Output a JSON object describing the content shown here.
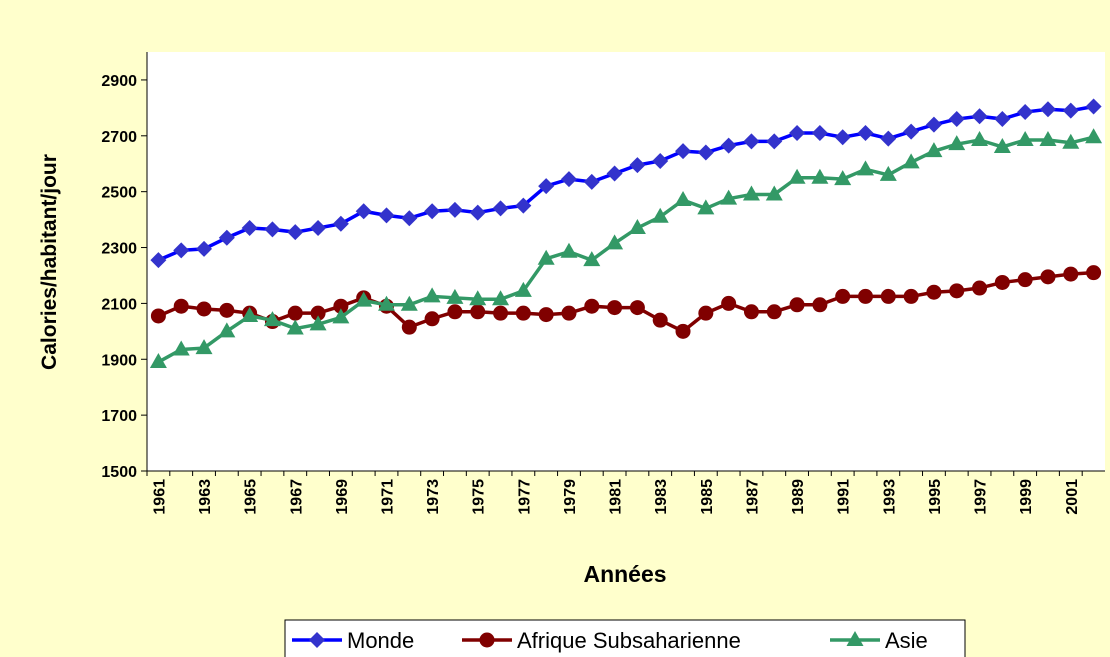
{
  "chart_data": {
    "type": "line",
    "x_label": "Années",
    "y_label": "Calories/habitant/jour",
    "categories": [
      "1961",
      null,
      "1963",
      null,
      "1965",
      null,
      "1967",
      null,
      "1969",
      null,
      "1971",
      null,
      "1973",
      null,
      "1975",
      null,
      "1977",
      null,
      "1979",
      null,
      "1981",
      null,
      "1983",
      null,
      "1985",
      null,
      "1987",
      null,
      "1989",
      null,
      "1991",
      null,
      "1993",
      null,
      "1995",
      null,
      "1997",
      null,
      "1999",
      null,
      "2001",
      null
    ],
    "series": [
      {
        "name": "Monde",
        "color": "#0000ff",
        "marker_color": "#3333cc",
        "marker": "diamond",
        "values": [
          2255,
          2290,
          2295,
          2335,
          2370,
          2365,
          2355,
          2370,
          2385,
          2430,
          2415,
          2405,
          2430,
          2435,
          2425,
          2440,
          2450,
          2520,
          2545,
          2535,
          2565,
          2595,
          2610,
          2645,
          2640,
          2665,
          2680,
          2680,
          2710,
          2710,
          2695,
          2710,
          2690,
          2715,
          2740,
          2760,
          2770,
          2760,
          2785,
          2795,
          2790,
          2805
        ]
      },
      {
        "name": "Afrique Subsaharienne",
        "color": "#800000",
        "marker_color": "#800000",
        "marker": "circle",
        "values": [
          2055,
          2090,
          2080,
          2075,
          2065,
          2035,
          2065,
          2065,
          2090,
          2120,
          2090,
          2015,
          2045,
          2070,
          2070,
          2065,
          2065,
          2060,
          2065,
          2090,
          2085,
          2085,
          2040,
          2000,
          2065,
          2100,
          2070,
          2070,
          2095,
          2095,
          2125,
          2125,
          2125,
          2125,
          2140,
          2145,
          2155,
          2175,
          2185,
          2195,
          2205,
          2210
        ]
      },
      {
        "name": "Asie",
        "color": "#339966",
        "marker_color": "#339966",
        "marker": "triangle",
        "values": [
          1890,
          1935,
          1940,
          2000,
          2055,
          2040,
          2010,
          2025,
          2050,
          2110,
          2095,
          2095,
          2125,
          2120,
          2115,
          2115,
          2145,
          2260,
          2285,
          2255,
          2315,
          2370,
          2410,
          2470,
          2440,
          2475,
          2490,
          2490,
          2550,
          2550,
          2545,
          2580,
          2560,
          2605,
          2645,
          2670,
          2685,
          2660,
          2685,
          2685,
          2675,
          2695
        ]
      }
    ],
    "ylim": [
      1500,
      3000
    ],
    "yticks": [
      1500,
      1700,
      1900,
      2100,
      2300,
      2500,
      2700,
      2900
    ],
    "grid": false,
    "legend": "bottom"
  }
}
